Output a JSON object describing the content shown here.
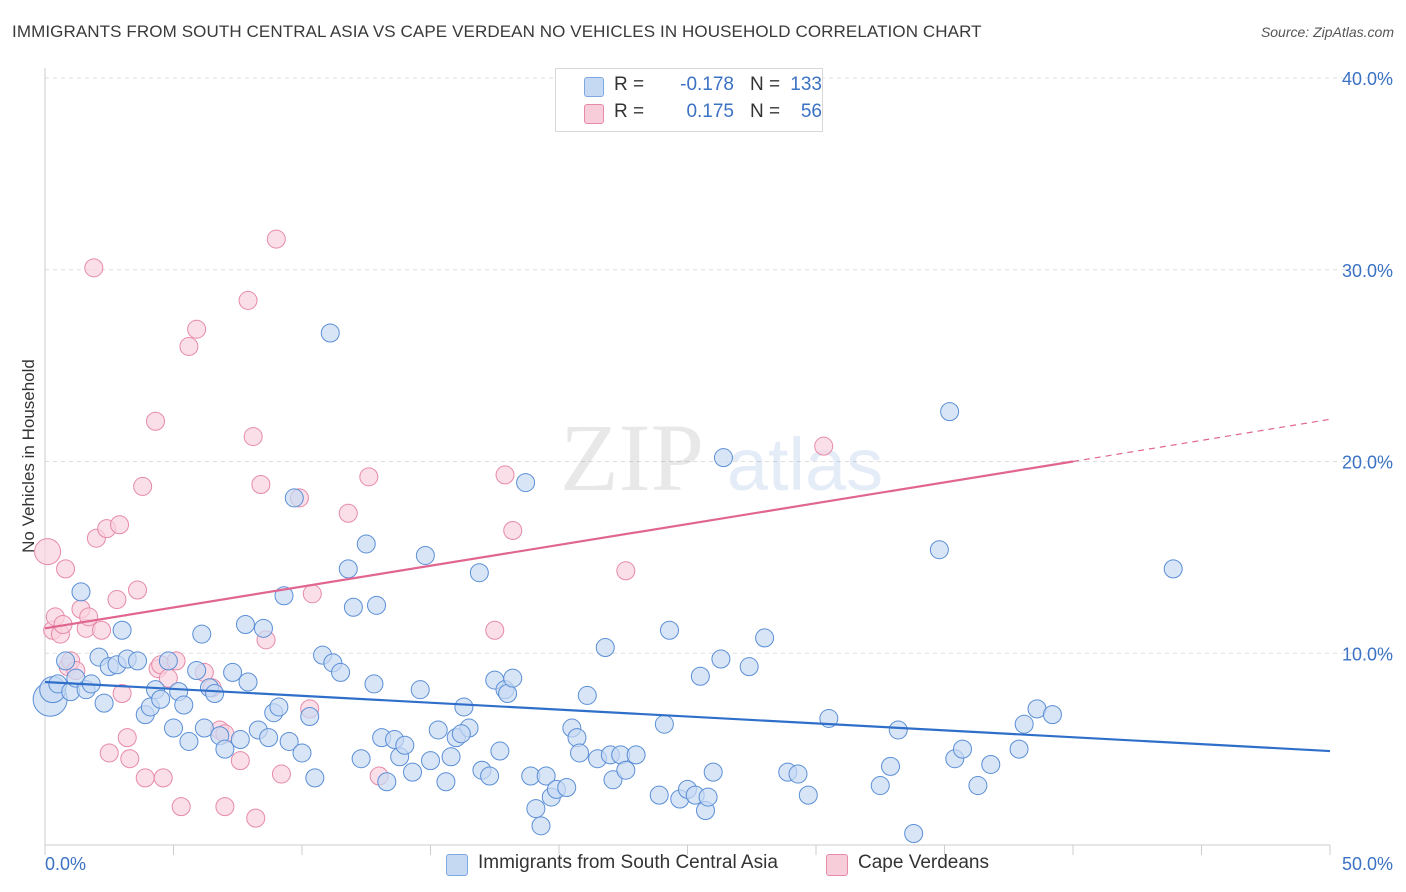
{
  "title": "IMMIGRANTS FROM SOUTH CENTRAL ASIA VS CAPE VERDEAN NO VEHICLES IN HOUSEHOLD CORRELATION CHART",
  "source": "Source: ZipAtlas.com",
  "watermark": {
    "zip": "ZIP",
    "atlas": "atlas"
  },
  "legend": {
    "rows": [
      {
        "r_label": "R =",
        "r_value": "-0.178",
        "n_label": "N =",
        "n_value": "133",
        "color": "#7fa8e0",
        "fill": "#c6d9f3"
      },
      {
        "r_label": "R =",
        "r_value": "0.175",
        "n_label": "N =",
        "n_value": "56",
        "color": "#e88aaa",
        "fill": "#f8cdda"
      }
    ]
  },
  "bottom_legend": {
    "series_1": "Immigrants from South Central Asia",
    "series_2": "Cape Verdeans"
  },
  "colors": {
    "blue_line": "#2f6fc9",
    "pink_line": "#e06690",
    "blue_point_stroke": "#5b8fd6",
    "blue_point_fill": "#c8daf4",
    "pink_point_stroke": "#e68aa8",
    "pink_point_fill": "#f9d2de",
    "tick_text": "#3b72c4",
    "grid": "#dddddd"
  },
  "chart_data": {
    "type": "scatter",
    "title": "IMMIGRANTS FROM SOUTH CENTRAL ASIA VS CAPE VERDEAN NO VEHICLES IN HOUSEHOLD CORRELATION CHART",
    "xlabel": "",
    "ylabel": "No Vehicles in Household",
    "xlim": [
      0,
      50
    ],
    "ylim": [
      0,
      40
    ],
    "x_tick_labels": [
      "0.0%",
      "50.0%"
    ],
    "y_ticks": [
      10,
      20,
      30,
      40
    ],
    "y_tick_labels": [
      "10.0%",
      "20.0%",
      "30.0%",
      "40.0%"
    ],
    "grid": true,
    "legend_position": "top-center",
    "series": [
      {
        "name": "Immigrants from South Central Asia",
        "r": -0.178,
        "n": 133,
        "trend": {
          "x": [
            0,
            50
          ],
          "y": [
            8.5,
            4.9
          ]
        },
        "points": [
          [
            0.2,
            7.6,
            3
          ],
          [
            0.3,
            8.1,
            2
          ],
          [
            0.5,
            8.4,
            1
          ],
          [
            0.8,
            9.6,
            1
          ],
          [
            1.0,
            8.0,
            1
          ],
          [
            1.2,
            8.7,
            1
          ],
          [
            1.4,
            13.2,
            1
          ],
          [
            1.6,
            8.1,
            1
          ],
          [
            1.8,
            8.4,
            1
          ],
          [
            2.1,
            9.8,
            1
          ],
          [
            2.3,
            7.4,
            1
          ],
          [
            2.5,
            9.3,
            1
          ],
          [
            2.8,
            9.4,
            1
          ],
          [
            3.0,
            11.2,
            1
          ],
          [
            3.2,
            9.7,
            1
          ],
          [
            3.6,
            9.6,
            1
          ],
          [
            3.9,
            6.8,
            1
          ],
          [
            4.1,
            7.2,
            1
          ],
          [
            4.3,
            8.1,
            1
          ],
          [
            4.5,
            7.6,
            1
          ],
          [
            4.8,
            9.6,
            1
          ],
          [
            5.0,
            6.1,
            1
          ],
          [
            5.2,
            8.0,
            1
          ],
          [
            5.4,
            7.3,
            1
          ],
          [
            5.6,
            5.4,
            1
          ],
          [
            5.9,
            9.1,
            1
          ],
          [
            6.1,
            11.0,
            1
          ],
          [
            6.2,
            6.1,
            1
          ],
          [
            6.4,
            8.2,
            1
          ],
          [
            6.6,
            7.9,
            1
          ],
          [
            6.8,
            5.7,
            1
          ],
          [
            7.0,
            5.0,
            1
          ],
          [
            7.3,
            9.0,
            1
          ],
          [
            7.6,
            5.5,
            1
          ],
          [
            7.8,
            11.5,
            1
          ],
          [
            7.9,
            8.5,
            1
          ],
          [
            8.3,
            6.0,
            1
          ],
          [
            8.5,
            11.3,
            1
          ],
          [
            8.7,
            5.6,
            1
          ],
          [
            8.9,
            6.9,
            1
          ],
          [
            9.1,
            7.2,
            1
          ],
          [
            9.3,
            13.0,
            1
          ],
          [
            9.5,
            5.4,
            1
          ],
          [
            9.7,
            18.1,
            1
          ],
          [
            10.0,
            4.8,
            1
          ],
          [
            10.3,
            6.7,
            1
          ],
          [
            10.5,
            3.5,
            1
          ],
          [
            10.8,
            9.9,
            1
          ],
          [
            11.1,
            26.7,
            1
          ],
          [
            11.2,
            9.5,
            1
          ],
          [
            11.5,
            9.0,
            1
          ],
          [
            11.8,
            14.4,
            1
          ],
          [
            12.0,
            12.4,
            1
          ],
          [
            12.3,
            4.5,
            1
          ],
          [
            12.5,
            15.7,
            1
          ],
          [
            12.8,
            8.4,
            1
          ],
          [
            12.9,
            12.5,
            1
          ],
          [
            13.1,
            5.6,
            1
          ],
          [
            13.3,
            3.3,
            1
          ],
          [
            13.6,
            5.5,
            1
          ],
          [
            13.8,
            4.6,
            1
          ],
          [
            14.0,
            5.2,
            1
          ],
          [
            14.3,
            3.8,
            1
          ],
          [
            14.6,
            8.1,
            1
          ],
          [
            14.8,
            15.1,
            1
          ],
          [
            15.0,
            4.4,
            1
          ],
          [
            15.3,
            6.0,
            1
          ],
          [
            15.6,
            3.3,
            1
          ],
          [
            15.8,
            4.6,
            1
          ],
          [
            16.0,
            5.6,
            1
          ],
          [
            16.3,
            7.2,
            1
          ],
          [
            16.5,
            6.1,
            1
          ],
          [
            16.9,
            14.2,
            1
          ],
          [
            17.0,
            3.9,
            1
          ],
          [
            17.3,
            3.6,
            1
          ],
          [
            17.5,
            8.6,
            1
          ],
          [
            17.7,
            4.9,
            1
          ],
          [
            17.9,
            8.1,
            1
          ],
          [
            18.0,
            7.9,
            1
          ],
          [
            18.2,
            8.7,
            1
          ],
          [
            18.7,
            18.9,
            1
          ],
          [
            18.9,
            3.6,
            1
          ],
          [
            19.1,
            1.9,
            1
          ],
          [
            19.3,
            1.0,
            1
          ],
          [
            19.5,
            3.6,
            1
          ],
          [
            19.7,
            2.5,
            1
          ],
          [
            19.9,
            2.9,
            1
          ],
          [
            20.3,
            3.0,
            1
          ],
          [
            20.5,
            6.1,
            1
          ],
          [
            20.7,
            5.6,
            1
          ],
          [
            20.8,
            4.8,
            1
          ],
          [
            21.1,
            7.8,
            1
          ],
          [
            21.5,
            4.5,
            1
          ],
          [
            21.8,
            10.3,
            1
          ],
          [
            22.0,
            4.7,
            1
          ],
          [
            22.1,
            3.4,
            1
          ],
          [
            22.4,
            4.7,
            1
          ],
          [
            22.6,
            3.9,
            1
          ],
          [
            23.0,
            4.7,
            1
          ],
          [
            23.9,
            2.6,
            1
          ],
          [
            24.1,
            6.3,
            1
          ],
          [
            24.3,
            11.2,
            1
          ],
          [
            24.7,
            2.4,
            1
          ],
          [
            25.0,
            2.9,
            1
          ],
          [
            25.3,
            2.6,
            1
          ],
          [
            25.5,
            8.8,
            1
          ],
          [
            25.7,
            1.8,
            1
          ],
          [
            25.8,
            2.5,
            1
          ],
          [
            26.0,
            3.8,
            1
          ],
          [
            26.3,
            9.7,
            1
          ],
          [
            26.4,
            20.2,
            1
          ],
          [
            27.4,
            9.3,
            1
          ],
          [
            28.0,
            10.8,
            1
          ],
          [
            28.9,
            3.8,
            1
          ],
          [
            29.3,
            3.7,
            1
          ],
          [
            29.7,
            2.6,
            1
          ],
          [
            30.5,
            6.6,
            1
          ],
          [
            32.5,
            3.1,
            1
          ],
          [
            32.9,
            4.1,
            1
          ],
          [
            33.2,
            6.0,
            1
          ],
          [
            34.8,
            15.4,
            1
          ],
          [
            35.2,
            22.6,
            1
          ],
          [
            35.4,
            4.5,
            1
          ],
          [
            35.7,
            5.0,
            1
          ],
          [
            36.3,
            3.1,
            1
          ],
          [
            36.8,
            4.2,
            1
          ],
          [
            37.9,
            5.0,
            1
          ],
          [
            38.1,
            6.3,
            1
          ],
          [
            38.6,
            7.1,
            1
          ],
          [
            39.2,
            6.8,
            1
          ],
          [
            43.9,
            14.4,
            1
          ],
          [
            33.8,
            0.6,
            1
          ],
          [
            16.2,
            5.8,
            1
          ]
        ]
      },
      {
        "name": "Cape Verdeans",
        "r": 0.175,
        "n": 56,
        "trend": {
          "x": [
            0,
            40
          ],
          "y": [
            11.3,
            20.0
          ],
          "dashed_to": [
            50,
            22.2
          ]
        },
        "points": [
          [
            0.1,
            15.3,
            2
          ],
          [
            0.3,
            11.2,
            1
          ],
          [
            0.4,
            11.9,
            1
          ],
          [
            0.6,
            11.0,
            1
          ],
          [
            0.7,
            11.5,
            1
          ],
          [
            0.8,
            14.4,
            1
          ],
          [
            0.9,
            9.3,
            1
          ],
          [
            1.0,
            9.6,
            1
          ],
          [
            1.2,
            9.1,
            1
          ],
          [
            1.4,
            12.3,
            1
          ],
          [
            1.6,
            11.3,
            1
          ],
          [
            1.7,
            11.9,
            1
          ],
          [
            1.9,
            30.1,
            1
          ],
          [
            2.0,
            16.0,
            1
          ],
          [
            2.2,
            11.2,
            1
          ],
          [
            2.4,
            16.5,
            1
          ],
          [
            2.5,
            4.8,
            1
          ],
          [
            2.8,
            12.8,
            1
          ],
          [
            2.9,
            16.7,
            1
          ],
          [
            3.0,
            7.9,
            1
          ],
          [
            3.2,
            5.6,
            1
          ],
          [
            3.3,
            4.5,
            1
          ],
          [
            3.6,
            13.3,
            1
          ],
          [
            3.8,
            18.7,
            1
          ],
          [
            3.9,
            3.5,
            1
          ],
          [
            4.3,
            22.1,
            1
          ],
          [
            4.4,
            9.2,
            1
          ],
          [
            4.5,
            9.4,
            1
          ],
          [
            4.6,
            3.5,
            1
          ],
          [
            4.8,
            8.7,
            1
          ],
          [
            5.1,
            9.6,
            1
          ],
          [
            5.3,
            2.0,
            1
          ],
          [
            5.6,
            26.0,
            1
          ],
          [
            5.9,
            26.9,
            1
          ],
          [
            6.2,
            9.0,
            1
          ],
          [
            6.5,
            8.2,
            1
          ],
          [
            6.8,
            6.0,
            1
          ],
          [
            7.0,
            5.8,
            1
          ],
          [
            7.6,
            4.4,
            1
          ],
          [
            7.9,
            28.4,
            1
          ],
          [
            8.1,
            21.3,
            1
          ],
          [
            8.2,
            1.4,
            1
          ],
          [
            8.4,
            18.8,
            1
          ],
          [
            8.6,
            10.7,
            1
          ],
          [
            9.0,
            31.6,
            1
          ],
          [
            9.2,
            3.7,
            1
          ],
          [
            10.3,
            7.1,
            1
          ],
          [
            10.4,
            13.1,
            1
          ],
          [
            11.8,
            17.3,
            1
          ],
          [
            12.6,
            19.2,
            1
          ],
          [
            13.0,
            3.6,
            1
          ],
          [
            17.5,
            11.2,
            1
          ],
          [
            17.9,
            19.3,
            1
          ],
          [
            18.2,
            16.4,
            1
          ],
          [
            22.6,
            14.3,
            1
          ],
          [
            30.3,
            20.8,
            1
          ],
          [
            9.9,
            18.1,
            1
          ],
          [
            7.0,
            2.0,
            1
          ]
        ]
      }
    ]
  }
}
